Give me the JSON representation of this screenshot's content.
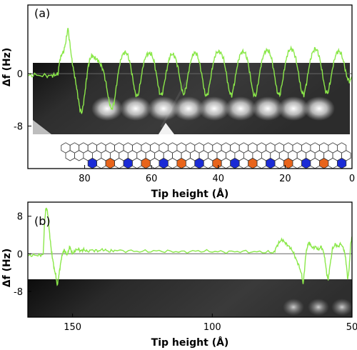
{
  "colors": {
    "trace": "#8be84a",
    "hex_outline": "#333333",
    "hex_blue": "#1b2bd6",
    "hex_orange": "#e8641b",
    "zero_line": "#666666"
  },
  "chart_data": [
    {
      "type": "line",
      "panel_label": "(a)",
      "xlabel": "Tip height (Å)",
      "ylabel": "Δf (Hz)",
      "xlim": [
        97,
        0
      ],
      "ylim": [
        -14.5,
        10.5
      ],
      "xticks": [
        80,
        60,
        40,
        20,
        0
      ],
      "yticks": [
        0,
        -8
      ],
      "ytick_labels": [
        "0",
        "-8"
      ],
      "series": [
        {
          "x": [
            97,
            95,
            92,
            90,
            89,
            88,
            87.4,
            86.8,
            86.2,
            85.6,
            85,
            84.4,
            83.8,
            83.2,
            82.6,
            82,
            81.4,
            80.8,
            80.2,
            79.6,
            79,
            78.4,
            77.8,
            77.2,
            76.6,
            76,
            75.2,
            74.4,
            73.6,
            72.8,
            72,
            71.2,
            70.4,
            69.6,
            68.8,
            68,
            67.2,
            66.4,
            65.6,
            64.8,
            64,
            63.2,
            62.4,
            61.6,
            60.8,
            60,
            59.2,
            58.4,
            57.6,
            56.8,
            56,
            55.2,
            54.4,
            53.6,
            52.8,
            52,
            51.2,
            50.4,
            49.6,
            48.8,
            48,
            47.2,
            46.4,
            45.6,
            44.8,
            44,
            43.2,
            42.4,
            41.6,
            40.8,
            40,
            39.2,
            38.4,
            37.6,
            36.8,
            36,
            35.2,
            34.4,
            33.6,
            32.8,
            32,
            31.2,
            30.4,
            29.6,
            28.8,
            28,
            27.2,
            26.4,
            25.6,
            24.8,
            24,
            23.2,
            22.4,
            21.6,
            20.8,
            20,
            19.2,
            18.4,
            17.6,
            16.8,
            16,
            15.2,
            14.4,
            13.6,
            12.8,
            12,
            11.2,
            10.4,
            9.6,
            8.8,
            8,
            7.2,
            6.4,
            5.6,
            4.8,
            4,
            3.2,
            2.4,
            1.6,
            0.8,
            0
          ],
          "y": [
            -0.3,
            -0.2,
            -0.3,
            -0.3,
            -0.2,
            -0.1,
            2.2,
            3.0,
            3.5,
            5.0,
            7.0,
            4.5,
            2.0,
            0.2,
            -1.5,
            -3.5,
            -5.5,
            -6.0,
            -4.0,
            -1.5,
            1.0,
            2.2,
            2.8,
            2.5,
            2.3,
            2.0,
            1.4,
            0.5,
            -1.5,
            -4.0,
            -5.5,
            -4.5,
            -1.5,
            1.2,
            2.8,
            3.3,
            3.0,
            1.6,
            -0.8,
            -3.2,
            -3.4,
            -1.0,
            1.5,
            2.8,
            3.1,
            3.0,
            1.8,
            -0.5,
            -3.0,
            -3.2,
            -1.0,
            1.2,
            2.8,
            3.0,
            2.4,
            0.8,
            -1.8,
            -3.3,
            -2.0,
            0.6,
            2.4,
            3.2,
            3.0,
            1.6,
            -0.6,
            -3.2,
            -3.3,
            -1.0,
            1.4,
            3.0,
            3.4,
            3.2,
            2.2,
            0.0,
            -2.6,
            -3.4,
            -1.5,
            1.0,
            2.8,
            3.4,
            3.2,
            2.0,
            -0.5,
            -3.0,
            -3.5,
            -1.2,
            1.4,
            3.0,
            3.6,
            3.4,
            2.2,
            -0.2,
            -2.8,
            -3.3,
            -1.2,
            1.4,
            3.2,
            3.8,
            3.6,
            2.3,
            0.0,
            -2.6,
            -3.3,
            -1.4,
            1.2,
            3.0,
            3.8,
            3.6,
            2.2,
            -0.2,
            -2.6,
            -3.0,
            -1.0,
            1.4,
            3.0,
            3.5,
            3.0,
            1.6,
            -0.4,
            -1.2,
            -0.6
          ]
        }
      ]
    },
    {
      "type": "line",
      "panel_label": "(b)",
      "xlabel": "Tip height (Å)",
      "ylabel": "Δf (Hz)",
      "xlim": [
        166,
        50
      ],
      "ylim": [
        -13.5,
        11
      ],
      "xticks": [
        150,
        100,
        50
      ],
      "yticks": [
        8,
        0,
        -8
      ],
      "ytick_labels": [
        "8",
        "0",
        "-8"
      ],
      "series": [
        {
          "x": [
            166,
            164,
            162,
            160.5,
            160,
            159.5,
            159,
            158.5,
            158,
            157.5,
            157,
            156.5,
            156,
            155.5,
            155,
            154.5,
            154,
            153.5,
            153,
            152.5,
            152,
            151.5,
            151,
            150.5,
            150,
            149,
            148,
            147,
            146,
            145,
            143,
            141,
            139,
            137,
            135,
            130,
            125,
            120,
            115,
            110,
            105,
            100,
            95,
            90,
            85,
            80,
            78,
            77,
            76,
            75,
            74,
            73,
            72,
            71,
            70,
            69,
            68,
            67.5,
            67,
            66.5,
            66,
            65.5,
            65,
            64,
            63,
            62,
            61,
            60,
            59.5,
            59,
            58.5,
            58,
            57,
            56,
            55,
            54,
            53,
            52.5,
            52,
            51.5,
            51,
            50.5,
            50
          ],
          "y": [
            -0.4,
            -0.3,
            -0.3,
            -0.2,
            7.0,
            9.8,
            9.2,
            6.0,
            3.0,
            0.2,
            -1.5,
            -3.5,
            -4.5,
            -6.8,
            -5.0,
            -3.0,
            -1.0,
            0.2,
            0.8,
            0.3,
            -0.2,
            0.5,
            1.5,
            0.6,
            0.0,
            0.7,
            1.0,
            0.6,
            0.9,
            0.5,
            0.8,
            0.6,
            0.9,
            0.5,
            0.7,
            0.6,
            0.5,
            0.6,
            0.5,
            0.4,
            0.6,
            0.5,
            0.4,
            0.5,
            0.4,
            0.4,
            0.2,
            1.5,
            2.5,
            3.0,
            2.4,
            1.8,
            1.2,
            0.3,
            -1.2,
            -2.5,
            -4.5,
            -6.5,
            -3.5,
            0.0,
            1.4,
            2.4,
            2.0,
            1.2,
            1.5,
            0.8,
            1.6,
            0.0,
            -2.0,
            -4.5,
            -5.5,
            -3.0,
            1.0,
            2.0,
            1.5,
            2.2,
            1.0,
            0.0,
            -2.5,
            -5.5,
            -3.0,
            2.0,
            3.6
          ]
        }
      ]
    }
  ]
}
